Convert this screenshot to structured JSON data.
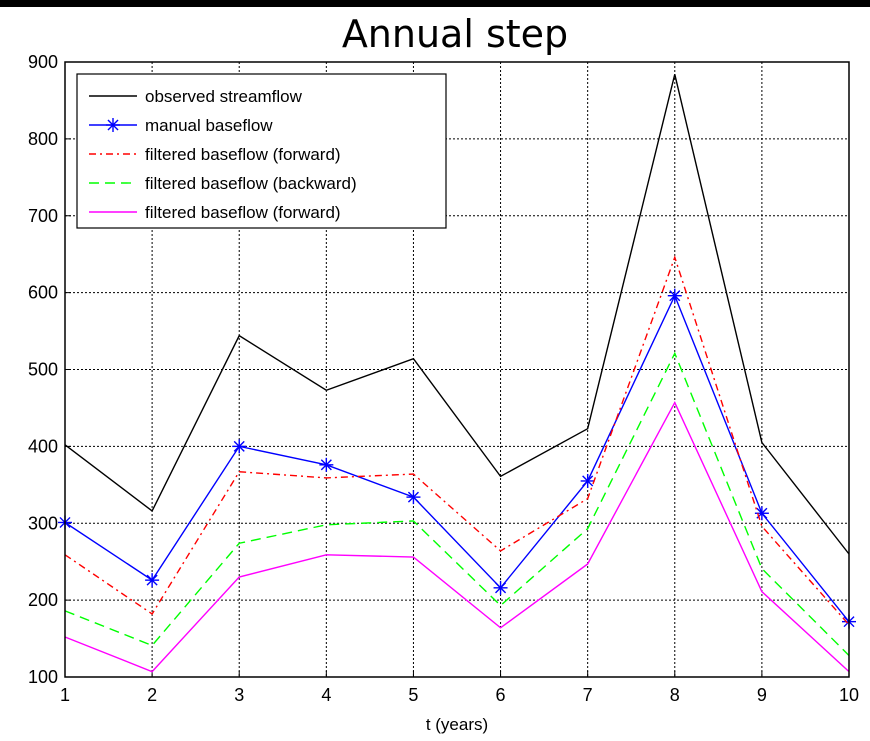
{
  "chart_data": {
    "type": "line",
    "title": "Annual step",
    "xlabel": "t (years)",
    "ylabel": "",
    "x": [
      1,
      2,
      3,
      4,
      5,
      6,
      7,
      8,
      9,
      10
    ],
    "xlim": [
      1,
      10
    ],
    "ylim": [
      100,
      900
    ],
    "xticks": [
      "1",
      "2",
      "3",
      "4",
      "5",
      "6",
      "7",
      "8",
      "9",
      "10"
    ],
    "yticks": [
      "100",
      "200",
      "300",
      "400",
      "500",
      "600",
      "700",
      "800",
      "900"
    ],
    "grid": true,
    "legend_position": "top-left",
    "series": [
      {
        "name": "observed streamflow",
        "color": "#000000",
        "style": "solid",
        "marker": "none",
        "values": [
          402,
          316,
          544,
          473,
          514,
          361,
          423,
          884,
          405,
          260
        ]
      },
      {
        "name": "manual baseflow",
        "color": "#0000ff",
        "style": "solid",
        "marker": "star",
        "values": [
          301,
          226,
          400,
          376,
          334,
          216,
          355,
          596,
          313,
          172
        ]
      },
      {
        "name": "filtered baseflow (forward)",
        "color": "#ff0000",
        "style": "dashdot",
        "marker": "none",
        "values": [
          259,
          182,
          367,
          359,
          364,
          264,
          332,
          646,
          296,
          168
        ]
      },
      {
        "name": "filtered baseflow (backward)",
        "color": "#00ff00",
        "style": "dashed",
        "marker": "none",
        "values": [
          186,
          141,
          274,
          298,
          303,
          193,
          293,
          521,
          241,
          128
        ]
      },
      {
        "name": "filtered baseflow (forward)",
        "color": "#ff00ff",
        "style": "solid",
        "marker": "none",
        "values": [
          152,
          107,
          230,
          259,
          256,
          164,
          247,
          457,
          211,
          107
        ]
      }
    ]
  }
}
